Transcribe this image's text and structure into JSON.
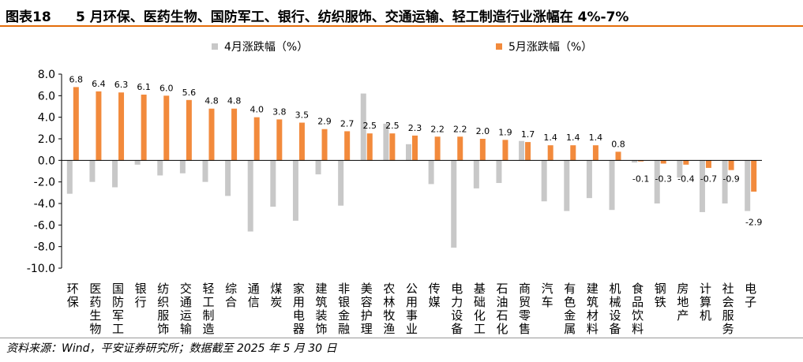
{
  "header": {
    "figure_label": "图表18",
    "title": "5 月环保、医药生物、国防军工、银行、纺织服饰、交通运输、轻工制造行业涨幅在 4%-7%"
  },
  "footer": {
    "source": "资料来源：Wind，平安证券研究所；数据截至 2025 年 5 月 30 日"
  },
  "colors": {
    "april": "#c8c8c8",
    "may": "#f28a3c",
    "accent_rule": "#e46c0a"
  },
  "chart_data": {
    "type": "bar",
    "categories": [
      "环保",
      "医药生物",
      "国防军工",
      "银行",
      "纺织服饰",
      "交通运输",
      "轻工制造",
      "综合",
      "通信",
      "煤炭",
      "家用电器",
      "建筑装饰",
      "非银金融",
      "美容护理",
      "农林牧渔",
      "公用事业",
      "传媒",
      "电力设备",
      "基础化工",
      "石油石化",
      "商贸零售",
      "汽车",
      "有色金属",
      "建筑材料",
      "机械设备",
      "食品饮料",
      "钢铁",
      "房地产",
      "计算机",
      "社会服务",
      "电子"
    ],
    "series": [
      {
        "name": "4月涨跌幅（%）",
        "values": [
          -3.1,
          -2.0,
          -2.5,
          -0.4,
          -1.4,
          -1.2,
          -2.0,
          -3.3,
          -6.6,
          -4.3,
          -5.6,
          -1.3,
          -4.2,
          6.2,
          3.4,
          1.5,
          -2.2,
          -8.1,
          -2.6,
          -2.1,
          1.8,
          -3.8,
          -4.7,
          -3.5,
          -4.6,
          -0.2,
          -4.0,
          -1.6,
          -4.8,
          -4.0,
          -4.7
        ]
      },
      {
        "name": "5月涨跌幅（%）",
        "values": [
          6.8,
          6.4,
          6.3,
          6.1,
          6.0,
          5.6,
          4.8,
          4.8,
          4.0,
          3.8,
          3.5,
          2.9,
          2.7,
          2.5,
          2.5,
          2.3,
          2.2,
          2.2,
          2.0,
          1.9,
          1.7,
          1.4,
          1.4,
          1.4,
          0.8,
          -0.1,
          -0.3,
          -0.4,
          -0.7,
          -0.9,
          -2.9
        ]
      }
    ],
    "data_label_series": "5月涨跌幅（%）",
    "ylim": [
      -10.0,
      8.0
    ],
    "yticks": [
      "8.0",
      "6.0",
      "4.0",
      "2.0",
      "0.0",
      "-2.0",
      "-4.0",
      "-6.0",
      "-8.0",
      "-10.0"
    ],
    "legend_position": "top-center",
    "grid": false
  }
}
